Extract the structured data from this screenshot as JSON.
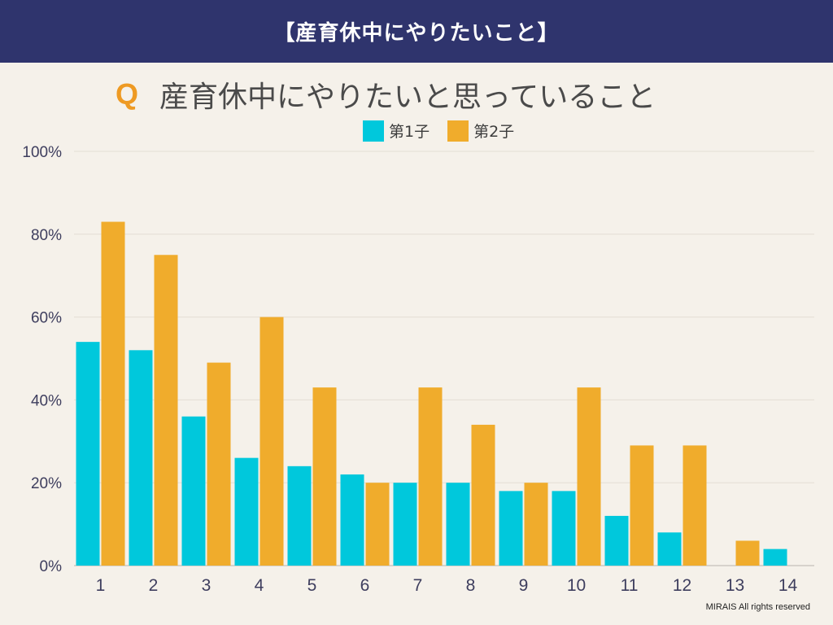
{
  "header": {
    "title": "【産育休中にやりたいこと】"
  },
  "question": {
    "mark": "Q",
    "text": "産育休中にやりたいと思っていること"
  },
  "footer": {
    "copyright": "MIRAIS All rights reserved"
  },
  "colors": {
    "series1": "#00c8dc",
    "series2": "#f0ac2c",
    "header_bg": "#2f346d",
    "grid": "#e4ded4"
  },
  "chart_data": {
    "type": "bar",
    "title": "産育休中にやりたいと思っていること",
    "xlabel": "",
    "ylabel": "",
    "ylim": [
      0,
      100
    ],
    "yticks": [
      "0%",
      "20%",
      "40%",
      "60%",
      "80%",
      "100%"
    ],
    "ytick_values": [
      0,
      20,
      40,
      60,
      80,
      100
    ],
    "categories": [
      "1",
      "2",
      "3",
      "4",
      "5",
      "6",
      "7",
      "8",
      "9",
      "10",
      "11",
      "12",
      "13",
      "14"
    ],
    "legend_position": "top-center",
    "series": [
      {
        "name": "第1子",
        "color": "#00c8dc",
        "values": [
          54,
          52,
          36,
          26,
          24,
          22,
          20,
          20,
          18,
          18,
          12,
          8,
          0,
          4
        ]
      },
      {
        "name": "第2子",
        "color": "#f0ac2c",
        "values": [
          83,
          75,
          49,
          60,
          43,
          20,
          43,
          34,
          20,
          43,
          29,
          29,
          6,
          null
        ]
      }
    ]
  }
}
